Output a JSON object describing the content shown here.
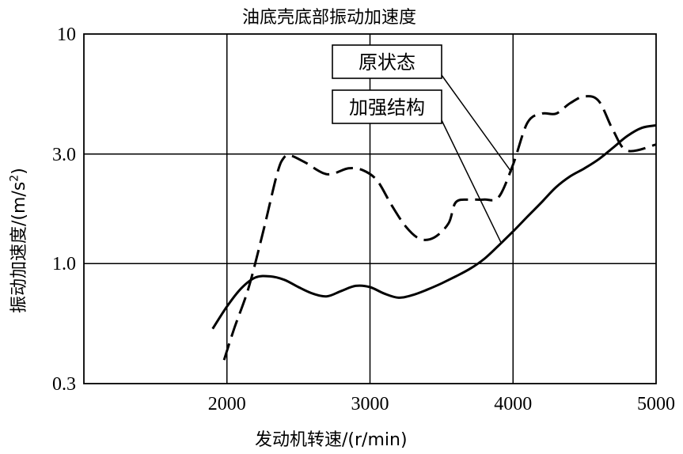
{
  "chart_data": {
    "type": "line",
    "title": "油底壳底部振动加速度",
    "xlabel": "发动机转速/(r/min)",
    "ylabel_base": "振动加速度/(m/s",
    "ylabel_sup": "2",
    "ylabel_end": ")",
    "x_ticks": [
      2000,
      3000,
      4000,
      5000
    ],
    "x_tick_labels": [
      "2000",
      "3000",
      "4000",
      "5000"
    ],
    "xlim": [
      1000,
      5000
    ],
    "y_scale": "log",
    "y_ticks": [
      0.3,
      1.0,
      3.0,
      10
    ],
    "y_tick_labels": [
      "0.3",
      "1.0",
      "3.0",
      "10"
    ],
    "ylim": [
      0.3,
      10
    ],
    "grid": true,
    "series": [
      {
        "name": "原状态",
        "style": "dashed",
        "x": [
          1980,
          2050,
          2150,
          2250,
          2350,
          2400,
          2450,
          2550,
          2700,
          2850,
          2950,
          3050,
          3150,
          3250,
          3350,
          3450,
          3550,
          3600,
          3700,
          3800,
          3900,
          4000,
          4100,
          4200,
          4300,
          4400,
          4500,
          4600,
          4700,
          4800,
          5000
        ],
        "y": [
          0.38,
          0.52,
          0.78,
          1.35,
          2.45,
          2.9,
          2.95,
          2.75,
          2.45,
          2.6,
          2.55,
          2.3,
          1.8,
          1.45,
          1.28,
          1.3,
          1.5,
          1.85,
          1.9,
          1.9,
          1.95,
          2.7,
          4.1,
          4.5,
          4.5,
          5.0,
          5.35,
          5.1,
          3.8,
          3.1,
          3.3
        ]
      },
      {
        "name": "加强结构",
        "style": "solid",
        "x": [
          1900,
          2000,
          2100,
          2200,
          2300,
          2400,
          2500,
          2600,
          2700,
          2800,
          2900,
          3000,
          3100,
          3200,
          3300,
          3400,
          3500,
          3600,
          3700,
          3800,
          3900,
          4000,
          4100,
          4200,
          4300,
          4400,
          4500,
          4600,
          4700,
          4800,
          4900,
          5000
        ],
        "y": [
          0.52,
          0.65,
          0.78,
          0.87,
          0.88,
          0.85,
          0.79,
          0.74,
          0.72,
          0.76,
          0.8,
          0.79,
          0.74,
          0.71,
          0.73,
          0.77,
          0.82,
          0.88,
          0.95,
          1.05,
          1.2,
          1.38,
          1.6,
          1.85,
          2.15,
          2.4,
          2.6,
          2.85,
          3.2,
          3.6,
          3.9,
          4.0
        ]
      }
    ],
    "legend": [
      {
        "label": "原状态",
        "series": "原状态"
      },
      {
        "label": "加强结构",
        "series": "加强结构"
      }
    ]
  }
}
